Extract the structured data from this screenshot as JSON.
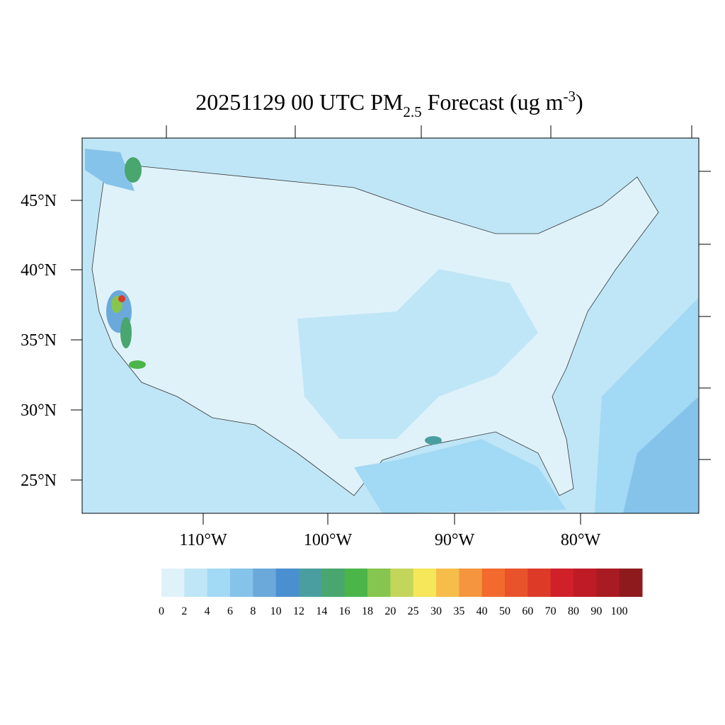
{
  "title": {
    "prefix": "20251129 00 UTC PM",
    "subscript": "2.5",
    "middle": "Forecast (ug m",
    "superscript": "-3",
    "suffix": ")"
  },
  "latitude_labels": [
    "45°N",
    "40°N",
    "35°N",
    "30°N",
    "25°N"
  ],
  "longitude_labels": [
    "110°W",
    "100°W",
    "90°W",
    "80°W"
  ],
  "colorbar": {
    "levels": [
      0,
      2,
      4,
      6,
      8,
      10,
      12,
      14,
      16,
      18,
      20,
      25,
      30,
      35,
      40,
      50,
      60,
      70,
      80,
      90,
      100
    ],
    "colors": [
      "#dff2fa",
      "#bfe6f6",
      "#a2d9f4",
      "#86c3ea",
      "#6aa9da",
      "#4a8fcf",
      "#4a9ea0",
      "#48a66e",
      "#4bb54a",
      "#86c54f",
      "#c3d65a",
      "#f5e65a",
      "#f6bd4a",
      "#f5963e",
      "#f26a2e",
      "#e8532b",
      "#dd3b27",
      "#d0202a",
      "#be1b26",
      "#a91b22",
      "#8e1a1d"
    ]
  }
}
